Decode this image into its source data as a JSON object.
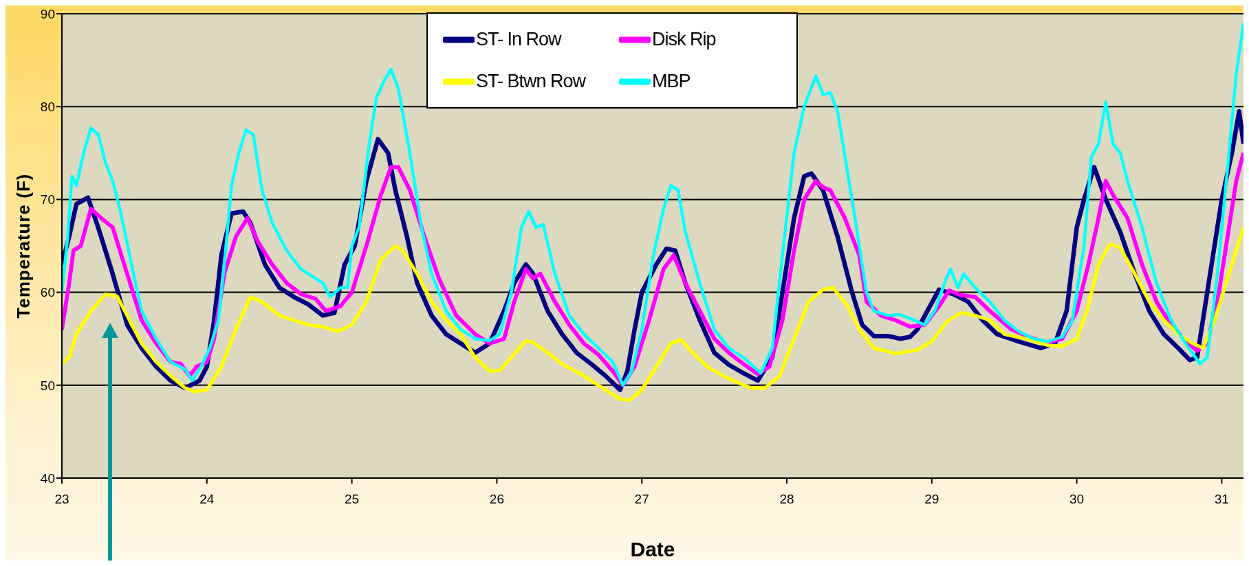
{
  "chart_data": {
    "type": "line",
    "xlabel": "Date",
    "ylabel": "Temperature (F)",
    "xlim": [
      23,
      31.15
    ],
    "xticks": [
      23,
      24,
      25,
      26,
      27,
      28,
      29,
      30,
      31
    ],
    "ylim": [
      40,
      90
    ],
    "yticks": [
      40,
      50,
      60,
      70,
      80,
      90
    ],
    "grid": "y",
    "legend": "top",
    "marker": "none",
    "line_style": "solid",
    "series": [
      {
        "name": "ST- In Row",
        "color": "#000080",
        "x": [
          23.0,
          23.05,
          23.1,
          23.18,
          23.25,
          23.35,
          23.45,
          23.55,
          23.65,
          23.75,
          23.85,
          23.95,
          24.0,
          24.05,
          24.1,
          24.17,
          24.25,
          24.3,
          24.4,
          24.5,
          24.6,
          24.7,
          24.8,
          24.88,
          24.95,
          25.02,
          25.1,
          25.18,
          25.25,
          25.3,
          25.38,
          25.45,
          25.55,
          25.65,
          25.75,
          25.85,
          25.95,
          26.05,
          26.12,
          26.2,
          26.25,
          26.35,
          26.45,
          26.55,
          26.65,
          26.75,
          26.85,
          26.9,
          26.95,
          27.0,
          27.1,
          27.17,
          27.23,
          27.3,
          27.4,
          27.5,
          27.6,
          27.7,
          27.8,
          27.9,
          27.95,
          28.05,
          28.12,
          28.17,
          28.25,
          28.35,
          28.45,
          28.52,
          28.6,
          28.7,
          28.78,
          28.85,
          28.9,
          28.97,
          29.05,
          29.15,
          29.25,
          29.35,
          29.45,
          29.6,
          29.75,
          29.85,
          29.93,
          30.0,
          30.05,
          30.12,
          30.2,
          30.3,
          30.4,
          30.5,
          30.6,
          30.7,
          30.78,
          30.83,
          30.9,
          30.95,
          31.0,
          31.07,
          31.12,
          31.15
        ],
        "values": [
          63,
          66,
          69.5,
          70.2,
          67,
          62,
          56.5,
          54,
          52,
          50.5,
          49.7,
          50.5,
          52,
          57,
          64,
          68.5,
          68.7,
          67.5,
          63,
          60.5,
          59.5,
          58.7,
          57.5,
          57.8,
          63,
          65,
          72,
          76.5,
          75,
          71,
          66,
          61,
          57.5,
          55.5,
          54.5,
          53.5,
          54.5,
          58,
          61,
          63,
          62,
          58,
          55.5,
          53.5,
          52.3,
          51,
          49.5,
          51.5,
          56,
          60,
          63,
          64.7,
          64.5,
          61,
          57,
          53.5,
          52.2,
          51.3,
          50.5,
          53,
          58,
          68,
          72.5,
          72.8,
          71,
          66,
          60,
          56.5,
          55.3,
          55.3,
          55,
          55.2,
          56,
          58,
          60.3,
          59.8,
          59,
          57,
          55.5,
          54.7,
          54,
          54.5,
          58,
          67,
          70,
          73.5,
          70,
          66.5,
          62,
          58,
          55.5,
          54,
          52.7,
          53,
          60,
          65,
          70,
          75,
          79.5,
          76
        ]
      },
      {
        "name": "Disk Rip",
        "color": "#ff00ff",
        "x": [
          23.0,
          23.05,
          23.08,
          23.13,
          23.2,
          23.27,
          23.35,
          23.43,
          23.55,
          23.65,
          23.75,
          23.82,
          23.88,
          23.93,
          24.0,
          24.05,
          24.12,
          24.2,
          24.28,
          24.35,
          24.45,
          24.55,
          24.65,
          24.75,
          24.82,
          24.92,
          25.0,
          25.1,
          25.2,
          25.27,
          25.32,
          25.4,
          25.5,
          25.6,
          25.72,
          25.85,
          25.95,
          26.05,
          26.12,
          26.2,
          26.25,
          26.3,
          26.4,
          26.5,
          26.6,
          26.7,
          26.8,
          26.87,
          26.95,
          27.05,
          27.15,
          27.22,
          27.3,
          27.4,
          27.5,
          27.6,
          27.7,
          27.8,
          27.88,
          27.97,
          28.05,
          28.12,
          28.2,
          28.25,
          28.3,
          28.4,
          28.5,
          28.55,
          28.65,
          28.75,
          28.85,
          28.95,
          29.05,
          29.12,
          29.2,
          29.3,
          29.4,
          29.55,
          29.7,
          29.8,
          29.9,
          30.0,
          30.08,
          30.15,
          30.2,
          30.25,
          30.35,
          30.45,
          30.55,
          30.65,
          30.75,
          30.83,
          30.9,
          30.98,
          31.05,
          31.1,
          31.15
        ],
        "values": [
          56,
          61,
          64.5,
          65,
          69,
          68,
          67,
          63,
          57,
          54.5,
          52.5,
          52.3,
          51,
          52,
          52.5,
          55,
          62,
          66,
          68,
          65.5,
          63,
          61,
          59.8,
          59.3,
          58,
          58.5,
          60,
          65,
          70.5,
          73.5,
          73.5,
          71,
          66,
          61.5,
          57.5,
          55.5,
          54.5,
          55,
          59,
          62.5,
          61.5,
          62,
          59,
          56.5,
          54.5,
          53.3,
          51.5,
          50,
          52,
          57,
          62.5,
          64,
          61,
          58,
          55,
          53.5,
          52.3,
          51.2,
          52,
          57,
          64.5,
          70,
          72,
          71.3,
          71,
          68,
          64,
          59,
          57.5,
          57,
          56.3,
          56.5,
          58.5,
          60.2,
          59.7,
          59.5,
          58,
          56,
          55,
          54.6,
          55,
          58,
          63,
          68,
          72,
          70.5,
          68,
          63,
          59,
          56.5,
          54.8,
          53.7,
          54.5,
          60,
          67,
          72,
          75
        ]
      },
      {
        "name": "ST- Btwn Row",
        "color": "#ffff00",
        "x": [
          23.0,
          23.05,
          23.1,
          23.2,
          23.3,
          23.38,
          23.45,
          23.55,
          23.65,
          23.75,
          23.85,
          23.92,
          24.0,
          24.1,
          24.2,
          24.3,
          24.38,
          24.5,
          24.6,
          24.7,
          24.8,
          24.9,
          25.0,
          25.1,
          25.2,
          25.3,
          25.35,
          25.45,
          25.55,
          25.65,
          25.75,
          25.85,
          25.95,
          26.02,
          26.1,
          26.2,
          26.25,
          26.35,
          26.45,
          26.6,
          26.75,
          26.85,
          26.92,
          27.0,
          27.1,
          27.2,
          27.27,
          27.35,
          27.45,
          27.6,
          27.75,
          27.85,
          27.95,
          28.05,
          28.15,
          28.25,
          28.32,
          28.42,
          28.5,
          28.6,
          28.75,
          28.9,
          29.0,
          29.1,
          29.2,
          29.3,
          29.4,
          29.5,
          29.65,
          29.8,
          29.9,
          30.0,
          30.07,
          30.15,
          30.23,
          30.3,
          30.4,
          30.5,
          30.6,
          30.7,
          30.8,
          30.87,
          30.95,
          31.05,
          31.15
        ],
        "values": [
          52.3,
          53,
          55.5,
          58,
          59.8,
          59.6,
          57.5,
          54.5,
          52.5,
          51,
          49.7,
          49.3,
          49.5,
          52,
          56,
          59.5,
          59,
          57.5,
          57,
          56.5,
          56.3,
          55.8,
          56.5,
          59,
          63.5,
          65,
          64.5,
          62,
          59,
          57,
          55.5,
          53,
          51.5,
          51.6,
          53,
          54.8,
          54.6,
          53.5,
          52.3,
          51,
          49.5,
          48.5,
          48.4,
          49.5,
          52,
          54.5,
          54.9,
          53.5,
          52,
          50.7,
          49.7,
          49.7,
          51,
          55,
          59,
          60.3,
          60.5,
          58.5,
          56,
          54,
          53.4,
          53.8,
          54.7,
          56.8,
          57.8,
          57.5,
          57,
          55.5,
          55,
          54.3,
          54.2,
          55,
          58,
          63,
          65.2,
          64.8,
          62,
          59,
          57,
          55.5,
          54.5,
          54,
          57,
          62,
          67
        ]
      },
      {
        "name": "MBP",
        "color": "#00ffff",
        "x": [
          23.0,
          23.04,
          23.07,
          23.1,
          23.15,
          23.2,
          23.25,
          23.3,
          23.35,
          23.4,
          23.48,
          23.55,
          23.65,
          23.75,
          23.85,
          23.9,
          23.96,
          24.02,
          24.08,
          24.12,
          24.17,
          24.22,
          24.27,
          24.32,
          24.38,
          24.45,
          24.55,
          24.65,
          24.75,
          24.8,
          24.85,
          24.92,
          24.97,
          25.0,
          25.05,
          25.12,
          25.17,
          25.23,
          25.27,
          25.32,
          25.4,
          25.48,
          25.55,
          25.65,
          25.75,
          25.85,
          25.95,
          26.02,
          26.1,
          26.17,
          26.22,
          26.27,
          26.32,
          26.4,
          26.5,
          26.6,
          26.7,
          26.8,
          26.87,
          26.93,
          27.0,
          27.08,
          27.15,
          27.2,
          27.25,
          27.3,
          27.4,
          27.5,
          27.6,
          27.7,
          27.82,
          27.9,
          27.97,
          28.05,
          28.12,
          28.2,
          28.25,
          28.3,
          28.35,
          28.45,
          28.55,
          28.6,
          28.7,
          28.78,
          28.88,
          28.95,
          29.02,
          29.1,
          29.13,
          29.18,
          29.22,
          29.3,
          29.4,
          29.5,
          29.6,
          29.7,
          29.8,
          29.9,
          29.97,
          30.05,
          30.1,
          30.15,
          30.2,
          30.25,
          30.3,
          30.35,
          30.45,
          30.55,
          30.65,
          30.75,
          30.85,
          30.9,
          30.97,
          31.05,
          31.1,
          31.15
        ],
        "values": [
          60,
          66,
          72.5,
          71.5,
          75,
          77.7,
          77,
          74,
          72,
          69,
          63,
          58,
          55,
          52.5,
          51.7,
          50.5,
          52,
          54,
          57,
          63,
          71.5,
          75,
          77.5,
          77,
          71,
          67.5,
          64.5,
          62.5,
          61.5,
          61,
          59.5,
          60.5,
          60.5,
          65,
          67,
          76,
          81,
          83,
          84,
          82,
          75,
          67,
          62,
          58,
          56,
          55,
          54.8,
          55.5,
          60,
          67,
          68.7,
          67,
          67.3,
          62,
          57.5,
          55.5,
          54,
          52.5,
          50,
          51.5,
          56,
          64,
          69,
          71.5,
          71,
          66.5,
          61,
          56,
          54,
          53,
          51.3,
          54,
          64,
          75,
          80,
          83.3,
          81.3,
          81.5,
          79.5,
          70,
          60,
          58,
          57.5,
          57.6,
          57,
          56.5,
          58,
          61.5,
          62.5,
          60.5,
          62,
          60.5,
          59,
          57,
          55.8,
          55,
          54.7,
          55.2,
          57,
          65,
          74.5,
          76,
          80.5,
          76,
          75,
          72,
          67,
          61,
          57,
          54.5,
          52.3,
          53,
          62,
          75,
          83.5,
          89
        ]
      }
    ]
  }
}
